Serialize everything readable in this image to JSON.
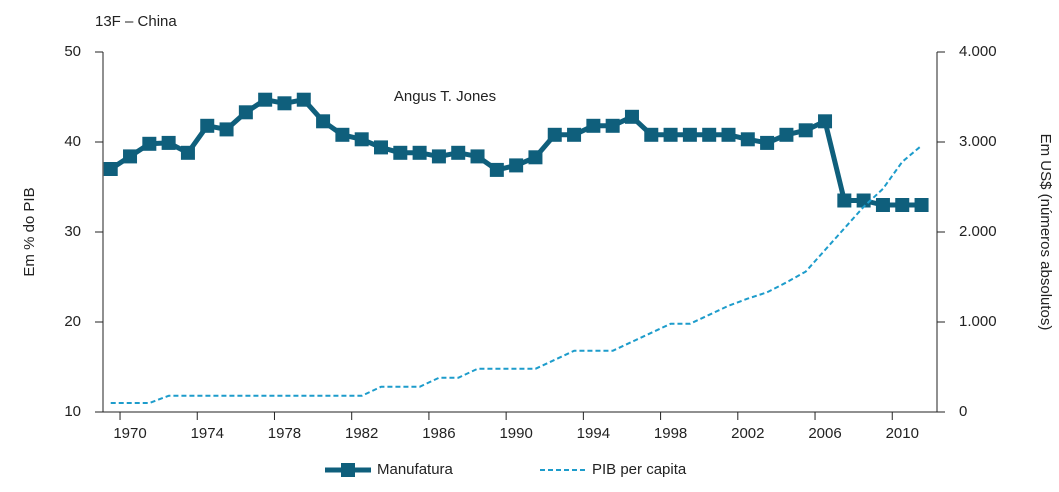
{
  "chart_data": {
    "type": "line",
    "title": "13F – China",
    "annotation": "Angus T. Jones",
    "y_label": "Em % do PIB",
    "y2_label": "Em US$ (números absolutos)",
    "x": [
      1969,
      1970,
      1971,
      1972,
      1973,
      1974,
      1975,
      1976,
      1977,
      1978,
      1979,
      1980,
      1981,
      1982,
      1983,
      1984,
      1985,
      1986,
      1987,
      1988,
      1989,
      1990,
      1991,
      1992,
      1993,
      1994,
      1995,
      1996,
      1997,
      1998,
      1999,
      2000,
      2001,
      2002,
      2003,
      2004,
      2005,
      2006,
      2007,
      2008,
      2009,
      2010,
      2011
    ],
    "series": [
      {
        "name": "Manufatura",
        "color": "#0f5f7c",
        "marker": "square",
        "values": [
          37.0,
          38.4,
          39.8,
          39.9,
          38.8,
          41.8,
          41.4,
          43.3,
          44.7,
          44.3,
          44.7,
          42.3,
          40.8,
          40.3,
          39.4,
          38.8,
          38.8,
          38.4,
          38.8,
          38.4,
          36.9,
          37.4,
          38.3,
          40.8,
          40.8,
          41.8,
          41.8,
          42.8,
          40.8,
          40.8,
          40.8,
          40.8,
          40.8,
          40.3,
          39.9,
          40.8,
          41.3,
          42.3,
          33.5,
          33.5,
          33.0,
          33.0,
          33.0
        ]
      },
      {
        "name": "PIB per capita",
        "color": "#1d9ccb",
        "dashed": true,
        "axis": "y2",
        "values": [
          100,
          100,
          100,
          180,
          180,
          180,
          180,
          180,
          180,
          180,
          180,
          180,
          180,
          180,
          280,
          280,
          280,
          380,
          380,
          480,
          480,
          480,
          480,
          580,
          680,
          680,
          680,
          780,
          880,
          980,
          980,
          1080,
          1180,
          1260,
          1330,
          1440,
          1560,
          1800,
          2040,
          2280,
          2480,
          2780,
          2960
        ]
      }
    ],
    "xlim": [
      1968.6,
      2011.8
    ],
    "xticks": [
      1970,
      1974,
      1978,
      1982,
      1986,
      1990,
      1994,
      1998,
      2002,
      2006,
      2010
    ],
    "ylim": [
      10,
      50
    ],
    "yticks": [
      10,
      20,
      30,
      40,
      50
    ],
    "y2lim": [
      0,
      4000
    ],
    "y2ticks": [
      0,
      {
        "value": 1000,
        "label": "1.000"
      },
      {
        "value": 2000,
        "label": "2.000"
      },
      {
        "value": 3000,
        "label": "3.000"
      },
      {
        "value": 4000,
        "label": "4.000"
      }
    ],
    "grid": true
  }
}
